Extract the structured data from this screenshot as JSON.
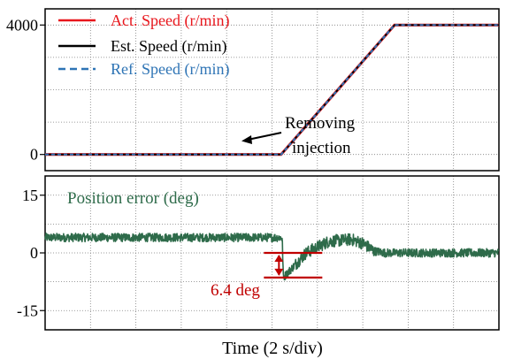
{
  "chart_data": [
    {
      "type": "line",
      "x": [
        0,
        10.4,
        15.4,
        20
      ],
      "ylim": [
        -500,
        4500
      ],
      "yticks": [
        0,
        4000
      ],
      "ytick_labels": [
        "0",
        "4000"
      ],
      "series": [
        {
          "name": "Act. Speed (r/min)",
          "color": "#e8161c",
          "style": "solid",
          "values": [
            0,
            0,
            4000,
            4000
          ]
        },
        {
          "name": "Est. Speed (r/min)",
          "color": "#000000",
          "style": "solid",
          "values": [
            0,
            0,
            4000,
            4000
          ]
        },
        {
          "name": "Ref. Speed (r/min)",
          "color": "#2e74b5",
          "style": "dashed",
          "values": [
            0,
            0,
            4000,
            4000
          ]
        }
      ],
      "legend_position": "top-left",
      "annotation": {
        "text_line1": "Removing",
        "text_line2": "injection",
        "x": 10.4,
        "y": 0
      }
    },
    {
      "type": "line",
      "xlim": [
        0,
        20
      ],
      "ylim": [
        -20,
        20
      ],
      "yticks": [
        15,
        0,
        -15
      ],
      "ytick_labels": [
        "15",
        "0",
        "-15"
      ],
      "series": [
        {
          "name": "Position error (deg)",
          "color": "#2e6b4a",
          "x": [
            0,
            10.4,
            10.45,
            10.5,
            10.8,
            11.5,
            12.5,
            13.5,
            14.0,
            14.5,
            15.0,
            16.0,
            20
          ],
          "values": [
            4,
            4,
            3.5,
            -6.4,
            -4.5,
            0,
            3,
            3.5,
            2.5,
            0.5,
            0,
            0,
            0
          ]
        }
      ],
      "annotation": {
        "text": "6.4 deg",
        "delta": 6.4,
        "x": 10.5,
        "y_top": 0,
        "y_bottom": -6.4,
        "color": "#c00000"
      },
      "xlabel": "Time (2 s/div)",
      "xdiv": 2
    }
  ],
  "colors": {
    "grid": "#7f7f7f",
    "frame": "#000000",
    "annotation": "#c00000"
  }
}
